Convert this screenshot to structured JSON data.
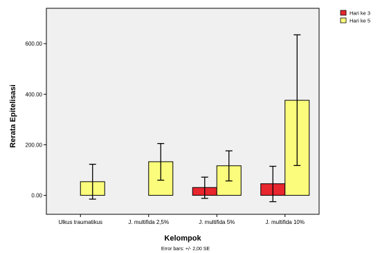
{
  "chart_data": {
    "type": "bar",
    "title": "",
    "xlabel": "Kelompok",
    "ylabel": "Rerata Epitelisasi",
    "footnote": "Error bars: +/- 2,00 SE",
    "categories": [
      "Ulkus traumatikus",
      "J. multifida 2,5%",
      "J. multifida 5%",
      "J. multifida 10%"
    ],
    "yticks": [
      "0.00",
      "200.00",
      "400.00",
      "600.00"
    ],
    "ylim": [
      -75,
      740
    ],
    "grid": false,
    "legend_position": "top-right",
    "series": [
      {
        "name": "Hari ke 3",
        "color": "#e8262e",
        "values": [
          0,
          0,
          31,
          46
        ],
        "error_low": [
          0,
          0,
          -12,
          -25
        ],
        "error_high": [
          0,
          0,
          72,
          115
        ]
      },
      {
        "name": "Hari ke 5",
        "color": "#fcfc7c",
        "values": [
          54,
          133,
          117,
          376
        ],
        "error_low": [
          -15,
          60,
          57,
          118
        ],
        "error_high": [
          123,
          205,
          176,
          635
        ]
      }
    ]
  }
}
